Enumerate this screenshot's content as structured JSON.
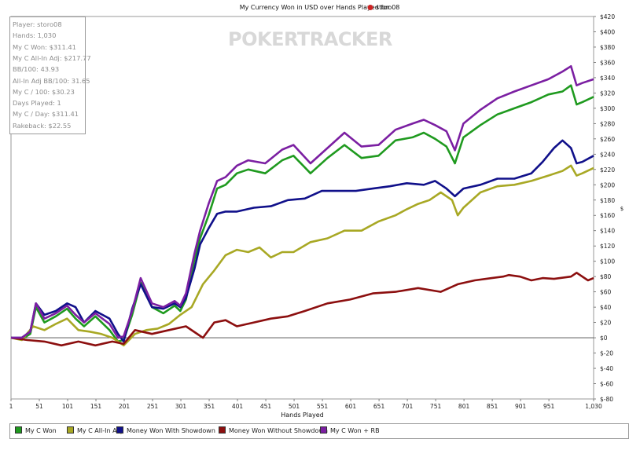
{
  "chart_data": {
    "type": "line",
    "title": "My Currency Won in USD over Hands Played for",
    "title_player": "storo08",
    "xlabel": "Hands Played",
    "ylabel": "$",
    "x_range": [
      1,
      1030
    ],
    "ylim": [
      -80,
      420
    ],
    "x_ticks": [
      "1",
      "51",
      "101",
      "151",
      "201",
      "251",
      "301",
      "351",
      "401",
      "451",
      "501",
      "551",
      "601",
      "651",
      "701",
      "751",
      "801",
      "851",
      "901",
      "951",
      "1,030"
    ],
    "y_ticks": [
      "$420",
      "$400",
      "$380",
      "$360",
      "$340",
      "$320",
      "$300",
      "$280",
      "$260",
      "$240",
      "$220",
      "$200",
      "$180",
      "$160",
      "$140",
      "$120",
      "$100",
      "$80",
      "$60",
      "$40",
      "$20",
      "$0",
      "$-20",
      "$-40",
      "$-60",
      "$-80"
    ],
    "grid": false,
    "legend_position": "bottom",
    "series": [
      {
        "name": "My C Won",
        "color": "#1f9a1f",
        "x": [
          1,
          20,
          35,
          45,
          60,
          80,
          100,
          115,
          130,
          150,
          175,
          190,
          200,
          215,
          230,
          250,
          270,
          290,
          300,
          310,
          325,
          335,
          350,
          365,
          380,
          400,
          420,
          450,
          480,
          500,
          530,
          560,
          590,
          620,
          650,
          680,
          710,
          730,
          750,
          770,
          785,
          800,
          830,
          860,
          890,
          920,
          950,
          975,
          990,
          1000,
          1010,
          1030
        ],
        "y": [
          0,
          -2,
          5,
          40,
          20,
          28,
          38,
          25,
          15,
          28,
          10,
          -5,
          -3,
          30,
          72,
          40,
          32,
          42,
          35,
          50,
          102,
          130,
          160,
          195,
          200,
          215,
          220,
          215,
          232,
          238,
          215,
          235,
          252,
          235,
          238,
          258,
          262,
          268,
          260,
          250,
          228,
          262,
          278,
          292,
          300,
          308,
          318,
          322,
          330,
          305,
          308,
          315
        ]
      },
      {
        "name": "My C All-In Adj",
        "color": "#a8a824",
        "x": [
          1,
          20,
          40,
          60,
          80,
          100,
          120,
          140,
          160,
          180,
          200,
          220,
          240,
          260,
          280,
          300,
          320,
          340,
          360,
          380,
          400,
          420,
          440,
          460,
          480,
          500,
          530,
          560,
          590,
          620,
          650,
          680,
          700,
          720,
          740,
          760,
          780,
          790,
          800,
          830,
          860,
          890,
          920,
          950,
          975,
          990,
          1000,
          1010,
          1030
        ],
        "y": [
          0,
          -3,
          15,
          10,
          18,
          25,
          10,
          8,
          5,
          0,
          -10,
          5,
          10,
          12,
          18,
          30,
          40,
          70,
          88,
          108,
          115,
          112,
          118,
          105,
          112,
          112,
          125,
          130,
          140,
          140,
          152,
          160,
          168,
          175,
          180,
          190,
          180,
          160,
          170,
          190,
          198,
          200,
          205,
          212,
          218,
          225,
          212,
          215,
          222
        ]
      },
      {
        "name": "Money Won With Showdown",
        "color": "#10108a",
        "x": [
          1,
          20,
          35,
          45,
          60,
          80,
          100,
          115,
          130,
          150,
          175,
          190,
          200,
          215,
          230,
          250,
          270,
          290,
          300,
          310,
          325,
          335,
          350,
          365,
          380,
          400,
          430,
          460,
          490,
          520,
          550,
          580,
          610,
          640,
          670,
          700,
          730,
          750,
          770,
          785,
          800,
          830,
          860,
          890,
          920,
          940,
          960,
          975,
          990,
          1000,
          1010,
          1030
        ],
        "y": [
          0,
          0,
          8,
          45,
          30,
          35,
          45,
          40,
          20,
          35,
          25,
          5,
          -5,
          38,
          70,
          40,
          38,
          45,
          40,
          52,
          90,
          122,
          143,
          162,
          165,
          165,
          170,
          172,
          180,
          182,
          192,
          192,
          192,
          195,
          198,
          202,
          200,
          205,
          195,
          185,
          195,
          200,
          208,
          208,
          215,
          230,
          248,
          258,
          248,
          228,
          230,
          238
        ]
      },
      {
        "name": "Money Won Without Showdown",
        "color": "#8c0f0f",
        "x": [
          1,
          30,
          60,
          90,
          120,
          150,
          180,
          200,
          220,
          250,
          280,
          310,
          340,
          360,
          380,
          400,
          430,
          460,
          490,
          520,
          560,
          600,
          640,
          680,
          720,
          760,
          790,
          820,
          850,
          870,
          880,
          900,
          920,
          940,
          960,
          990,
          1000,
          1020,
          1030
        ],
        "y": [
          0,
          -3,
          -5,
          -10,
          -5,
          -10,
          -5,
          -8,
          10,
          5,
          10,
          15,
          0,
          20,
          23,
          15,
          20,
          25,
          28,
          35,
          45,
          50,
          58,
          60,
          65,
          60,
          70,
          75,
          78,
          80,
          82,
          80,
          75,
          78,
          77,
          80,
          85,
          75,
          78
        ]
      },
      {
        "name": "My C Won + RB",
        "color": "#7b1fa2",
        "x": [
          1,
          20,
          35,
          45,
          60,
          80,
          100,
          115,
          130,
          150,
          175,
          190,
          200,
          215,
          230,
          250,
          270,
          290,
          300,
          310,
          325,
          335,
          350,
          365,
          380,
          400,
          420,
          450,
          480,
          500,
          530,
          560,
          590,
          620,
          650,
          680,
          710,
          730,
          750,
          770,
          785,
          800,
          830,
          860,
          890,
          920,
          950,
          975,
          990,
          1000,
          1010,
          1030
        ],
        "y": [
          0,
          0,
          8,
          45,
          25,
          32,
          42,
          30,
          20,
          32,
          18,
          0,
          2,
          35,
          78,
          45,
          40,
          48,
          42,
          58,
          110,
          140,
          175,
          205,
          210,
          225,
          232,
          228,
          246,
          252,
          228,
          248,
          268,
          250,
          252,
          272,
          280,
          285,
          278,
          270,
          245,
          280,
          298,
          313,
          322,
          330,
          338,
          348,
          355,
          330,
          333,
          338
        ]
      }
    ]
  },
  "stats": {
    "lines": [
      "Player: storo08",
      "Hands: 1,030",
      "My C Won: $311.41",
      "My C All-In Adj: $217.77",
      "BB/100: 43.93",
      "All-In Adj BB/100: 31.65",
      "My C / 100: $30.23",
      "Days Played: 1",
      "My C / Day: $311.41",
      "Rakeback: $22.55"
    ]
  },
  "watermark": "POKERTRACKER"
}
